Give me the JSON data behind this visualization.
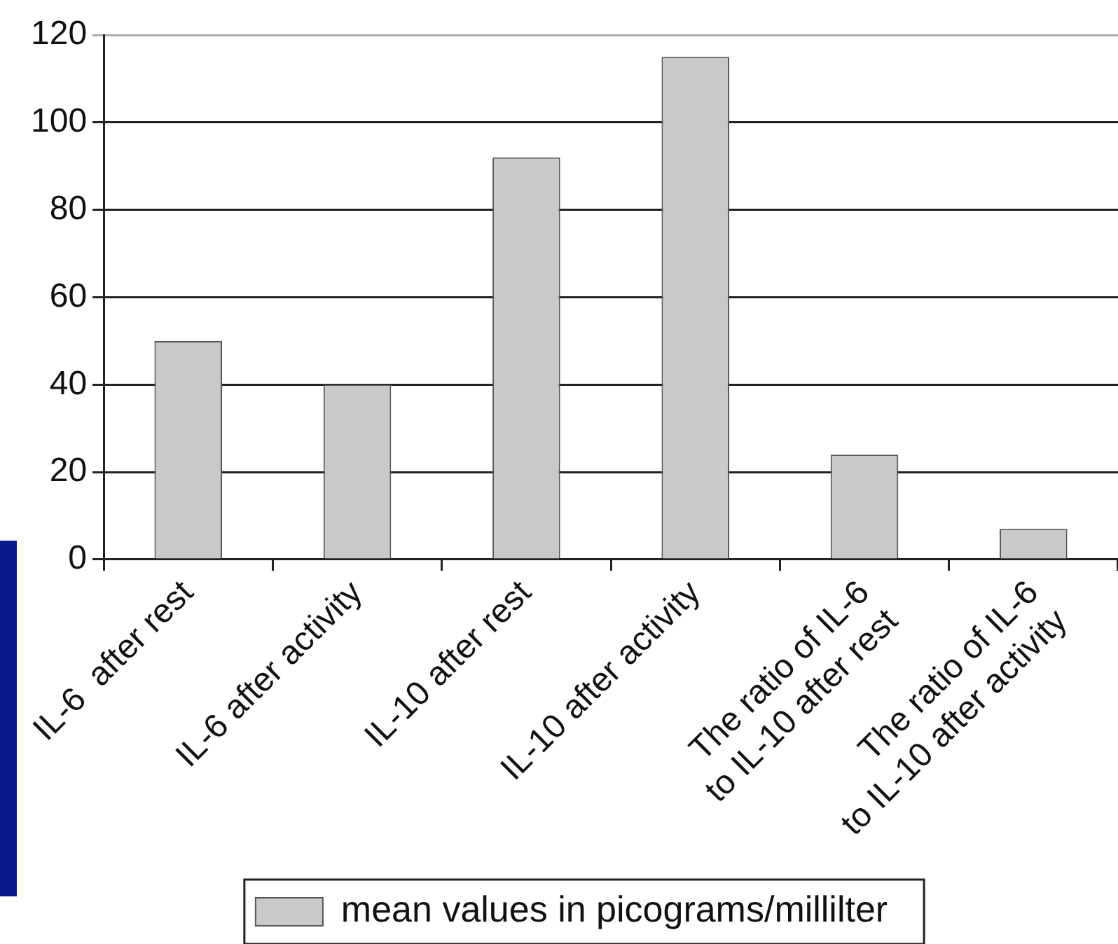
{
  "chart_data": {
    "type": "bar",
    "categories": [
      "IL-6  after rest",
      "IL-6 after activity",
      "IL-10 after rest",
      "IL-10 after activity",
      "The ratio of IL-6\nto IL-10 after rest",
      "The ratio of IL-6\nto IL-10 after activity"
    ],
    "series": [
      {
        "name": "mean values in picograms/millilter",
        "color": "#c8c9cb",
        "values": [
          50,
          40,
          92,
          115,
          24,
          7
        ]
      }
    ],
    "ylim": [
      0,
      120
    ],
    "yticks": [
      0,
      20,
      40,
      60,
      80,
      100,
      120
    ],
    "grid": "y",
    "legend": "bottom"
  }
}
